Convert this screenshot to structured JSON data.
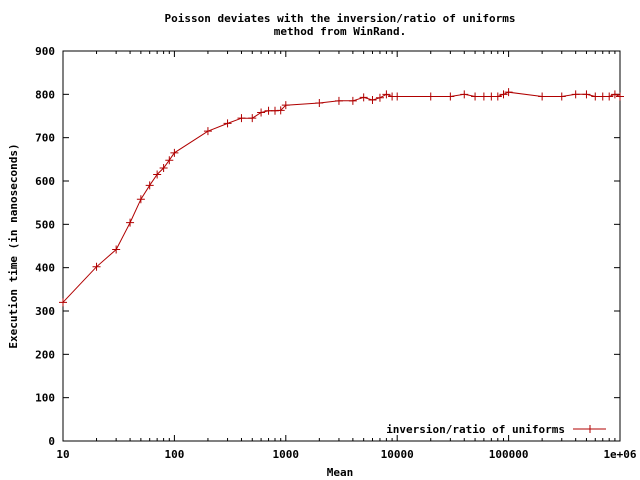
{
  "chart_data": {
    "type": "line",
    "title_line1": "Poisson deviates with the inversion/ratio of uniforms",
    "title_line2": "method from WinRand.",
    "xlabel": "Mean",
    "ylabel": "Execution time (in nanoseconds)",
    "x_scale": "log",
    "xlim": [
      10,
      1000000
    ],
    "ylim": [
      0,
      900
    ],
    "xticks": [
      10,
      100,
      1000,
      10000,
      100000,
      1000000
    ],
    "xtick_labels": [
      "10",
      "100",
      "1000",
      "10000",
      "100000",
      "1e+06"
    ],
    "yticks": [
      0,
      100,
      200,
      300,
      400,
      500,
      600,
      700,
      800,
      900
    ],
    "ytick_labels": [
      "0",
      "100",
      "200",
      "300",
      "400",
      "500",
      "600",
      "700",
      "800",
      "900"
    ],
    "grid": false,
    "legend_position": "bottom-right",
    "series": [
      {
        "name": "inversion/ratio of uniforms",
        "color": "#b00000",
        "marker": "plus",
        "x": [
          10,
          20,
          30,
          40,
          50,
          60,
          70,
          80,
          90,
          100,
          200,
          300,
          400,
          500,
          600,
          700,
          800,
          900,
          1000,
          2000,
          3000,
          4000,
          5000,
          6000,
          7000,
          8000,
          9000,
          10000,
          20000,
          30000,
          40000,
          50000,
          60000,
          70000,
          80000,
          90000,
          100000,
          200000,
          300000,
          400000,
          500000,
          600000,
          700000,
          800000,
          900000,
          1000000
        ],
        "y": [
          320,
          402,
          442,
          504,
          558,
          590,
          615,
          630,
          648,
          665,
          715,
          733,
          745,
          745,
          758,
          762,
          762,
          763,
          775,
          780,
          785,
          785,
          793,
          787,
          792,
          800,
          795,
          795,
          795,
          795,
          800,
          795,
          795,
          795,
          795,
          800,
          805,
          795,
          795,
          800,
          800,
          795,
          795,
          795,
          800,
          795
        ]
      }
    ]
  }
}
